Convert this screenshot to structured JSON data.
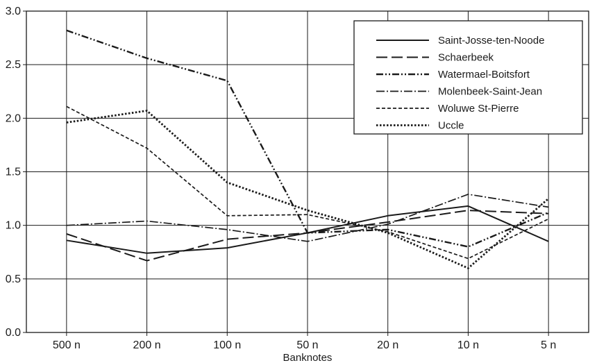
{
  "chart_data": {
    "type": "line",
    "xlabel": "Banknotes",
    "ylabel": "",
    "categories": [
      "500 n",
      "200 n",
      "100 n",
      "50 n",
      "20 n",
      "10 n",
      "5 n"
    ],
    "ylim": [
      0.0,
      3.0
    ],
    "yticks": [
      "0.0",
      "0.5",
      "1.0",
      "1.5",
      "2.0",
      "2.5",
      "3.0"
    ],
    "grid": "both",
    "legend_position": "top-right",
    "series": [
      {
        "name": "Saint-Josse-ten-Noode",
        "style": "solid",
        "values": [
          0.86,
          0.74,
          0.79,
          0.93,
          1.09,
          1.18,
          0.85
        ]
      },
      {
        "name": "Schaerbeek",
        "style": "long-dash",
        "values": [
          0.92,
          0.67,
          0.87,
          0.93,
          1.03,
          1.14,
          1.11
        ]
      },
      {
        "name": "Watermael-Boitsfort",
        "style": "dash-dot-dot",
        "values": [
          2.82,
          2.56,
          2.35,
          0.93,
          0.96,
          0.8,
          1.12
        ]
      },
      {
        "name": "Molenbeek-Saint-Jean",
        "style": "dash-dot",
        "values": [
          1.0,
          1.04,
          0.96,
          0.85,
          1.01,
          1.29,
          1.17
        ]
      },
      {
        "name": "Woluwe St-Pierre",
        "style": "short-dash",
        "values": [
          2.11,
          1.72,
          1.09,
          1.1,
          0.94,
          0.69,
          1.06
        ]
      },
      {
        "name": "Uccle",
        "style": "dotted",
        "values": [
          1.96,
          2.07,
          1.4,
          1.14,
          0.93,
          0.6,
          1.25
        ]
      }
    ]
  },
  "colors": {
    "line": "#1a1a1a",
    "grid": "#1a1a1a",
    "background": "#ffffff"
  }
}
